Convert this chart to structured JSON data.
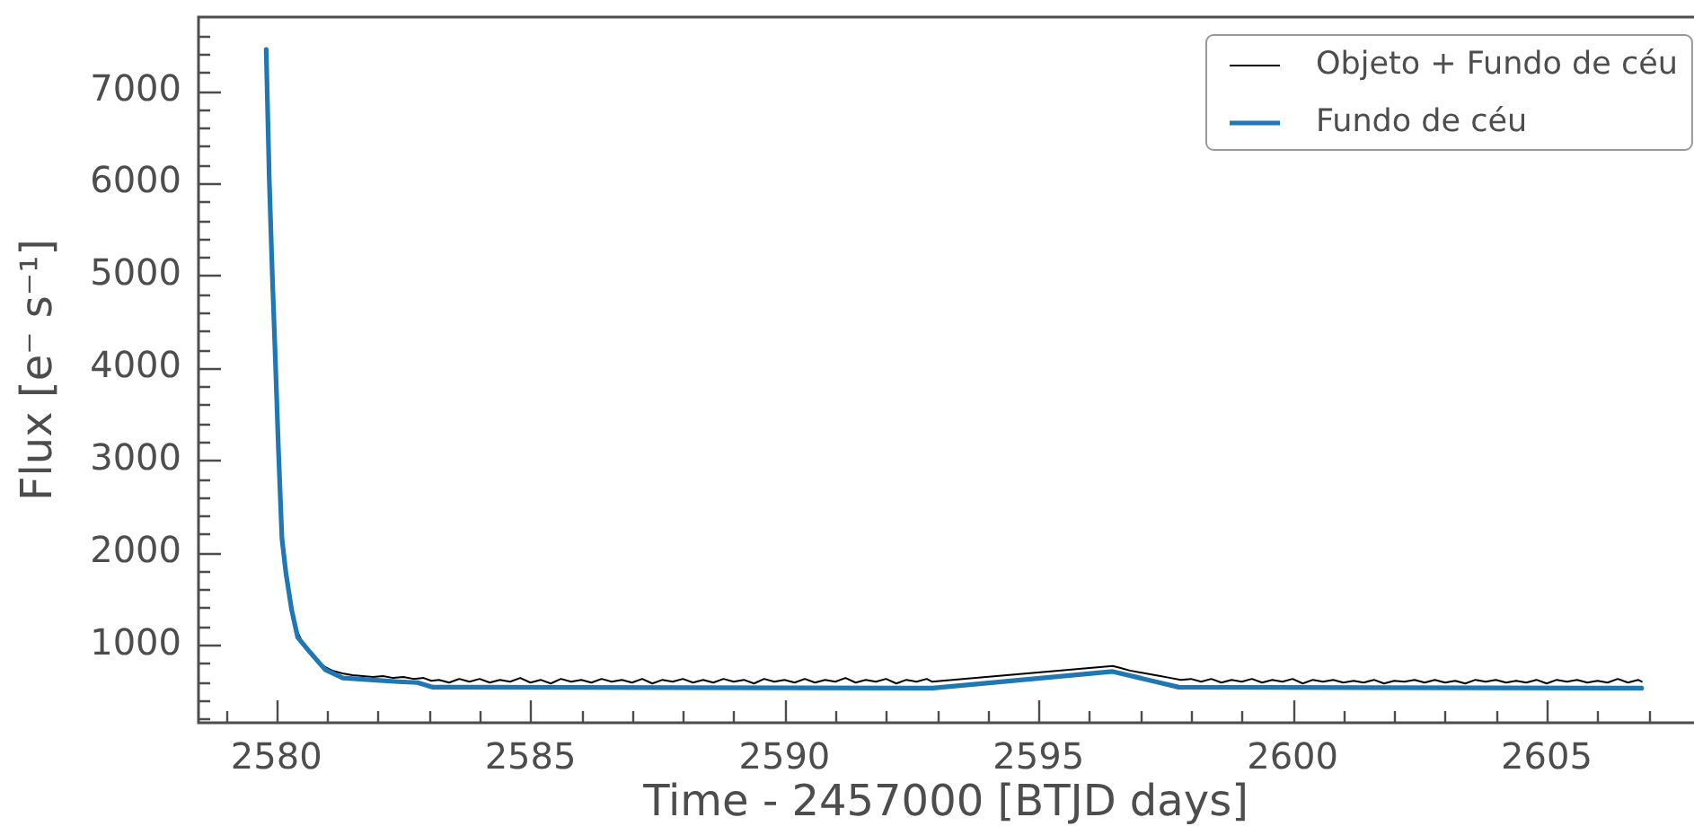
{
  "chart_data": {
    "type": "line",
    "xlabel": "Time - 2457000 [BTJD days]",
    "ylabel": "Flux [e⁻ s⁻¹]",
    "xlim": [
      2578.45,
      2607.9
    ],
    "ylim": [
      145,
      7810
    ],
    "xticks": [
      {
        "value": 2579,
        "label": null
      },
      2580,
      {
        "value": 2581,
        "label": null
      },
      {
        "value": 2582,
        "label": null
      },
      {
        "value": 2583,
        "label": null
      },
      {
        "value": 2584,
        "label": null
      },
      2585,
      {
        "value": 2586,
        "label": null
      },
      {
        "value": 2587,
        "label": null
      },
      {
        "value": 2588,
        "label": null
      },
      {
        "value": 2589,
        "label": null
      },
      2590,
      {
        "value": 2591,
        "label": null
      },
      {
        "value": 2592,
        "label": null
      },
      {
        "value": 2593,
        "label": null
      },
      {
        "value": 2594,
        "label": null
      },
      2595,
      {
        "value": 2596,
        "label": null
      },
      {
        "value": 2597,
        "label": null
      },
      {
        "value": 2598,
        "label": null
      },
      {
        "value": 2599,
        "label": null
      },
      2600,
      {
        "value": 2601,
        "label": null
      },
      {
        "value": 2602,
        "label": null
      },
      {
        "value": 2603,
        "label": null
      },
      {
        "value": 2604,
        "label": null
      },
      2605,
      {
        "value": 2606,
        "label": null
      },
      {
        "value": 2607,
        "label": null
      }
    ],
    "yticks": [
      {
        "value": 200,
        "label": null
      },
      {
        "value": 400,
        "label": null
      },
      {
        "value": 600,
        "label": null
      },
      {
        "value": 800,
        "label": null
      },
      1000,
      {
        "value": 1200,
        "label": null
      },
      {
        "value": 1400,
        "label": null
      },
      {
        "value": 1600,
        "label": null
      },
      {
        "value": 1800,
        "label": null
      },
      2000,
      {
        "value": 2200,
        "label": null
      },
      {
        "value": 2400,
        "label": null
      },
      {
        "value": 2600,
        "label": null
      },
      {
        "value": 2800,
        "label": null
      },
      3000,
      {
        "value": 3200,
        "label": null
      },
      {
        "value": 3400,
        "label": null
      },
      {
        "value": 3600,
        "label": null
      },
      {
        "value": 3800,
        "label": null
      },
      4000,
      {
        "value": 4200,
        "label": null
      },
      {
        "value": 4400,
        "label": null
      },
      {
        "value": 4600,
        "label": null
      },
      {
        "value": 4800,
        "label": null
      },
      5000,
      {
        "value": 5200,
        "label": null
      },
      {
        "value": 5400,
        "label": null
      },
      {
        "value": 5600,
        "label": null
      },
      {
        "value": 5800,
        "label": null
      },
      6000,
      {
        "value": 6200,
        "label": null
      },
      {
        "value": 6400,
        "label": null
      },
      {
        "value": 6600,
        "label": null
      },
      {
        "value": 6800,
        "label": null
      },
      7000,
      {
        "value": 7200,
        "label": null
      },
      {
        "value": 7400,
        "label": null
      },
      {
        "value": 7600,
        "label": null
      }
    ],
    "legend": "top right",
    "series": [
      {
        "name": "Objeto + Fundo de céu",
        "color": "#000000",
        "x": [
          2580.38,
          2580.5,
          2580.65,
          2580.8,
          2580.95,
          2581.1,
          2581.3,
          2581.5,
          2581.7,
          2581.9,
          2582.1,
          2582.3,
          2582.5,
          2582.7,
          2582.9,
          2583.05,
          2583.2,
          2583.4,
          2583.6,
          2583.8,
          2584.0,
          2584.2,
          2584.4,
          2584.6,
          2584.8,
          2585.0,
          2585.2,
          2585.4,
          2585.6,
          2585.8,
          2586.0,
          2586.2,
          2586.4,
          2586.6,
          2586.8,
          2587.0,
          2587.2,
          2587.4,
          2587.6,
          2587.8,
          2588.0,
          2588.2,
          2588.4,
          2588.6,
          2588.8,
          2589.0,
          2589.2,
          2589.4,
          2589.6,
          2589.8,
          2590.0,
          2590.2,
          2590.4,
          2590.6,
          2590.8,
          2591.0,
          2591.2,
          2591.4,
          2591.6,
          2591.8,
          2592.0,
          2592.2,
          2592.4,
          2592.6,
          2592.8,
          2592.9,
          2596.46,
          2596.6,
          2596.8,
          2597.0,
          2597.2,
          2597.4,
          2597.6,
          2597.8,
          2598.0,
          2598.2,
          2598.4,
          2598.6,
          2598.8,
          2599.0,
          2599.2,
          2599.4,
          2599.6,
          2599.8,
          2600.0,
          2600.2,
          2600.4,
          2600.6,
          2600.8,
          2601.0,
          2601.2,
          2601.4,
          2601.6,
          2601.8,
          2602.0,
          2602.2,
          2602.4,
          2602.6,
          2602.8,
          2603.0,
          2603.2,
          2603.4,
          2603.6,
          2603.8,
          2604.0,
          2604.2,
          2604.4,
          2604.6,
          2604.8,
          2605.0,
          2605.2,
          2605.4,
          2605.6,
          2605.8,
          2606.0,
          2606.2,
          2606.4,
          2606.6,
          2606.8,
          2606.87
        ],
        "values": [
          1180,
          1040,
          930,
          830,
          760,
          720,
          690,
          670,
          660,
          650,
          660,
          640,
          650,
          630,
          640,
          610,
          620,
          590,
          630,
          600,
          630,
          590,
          620,
          600,
          640,
          590,
          620,
          580,
          630,
          600,
          620,
          590,
          630,
          600,
          620,
          590,
          630,
          580,
          620,
          600,
          630,
          590,
          620,
          590,
          630,
          600,
          620,
          580,
          630,
          600,
          620,
          590,
          630,
          590,
          620,
          600,
          640,
          590,
          620,
          600,
          630,
          580,
          620,
          600,
          630,
          600,
          770,
          750,
          720,
          700,
          680,
          660,
          640,
          620,
          630,
          600,
          630,
          590,
          620,
          600,
          630,
          590,
          620,
          600,
          630,
          580,
          620,
          600,
          620,
          590,
          610,
          590,
          620,
          580,
          610,
          600,
          620,
          590,
          620,
          590,
          610,
          580,
          620,
          600,
          620,
          590,
          610,
          590,
          620,
          580,
          620,
          600,
          620,
          590,
          610,
          590,
          630,
          590,
          620,
          600
        ]
      },
      {
        "name": "Fundo de céu",
        "color": "#1f77b4",
        "x": [
          2579.8,
          2579.86,
          2579.92,
          2579.98,
          2580.04,
          2580.11,
          2580.19,
          2580.3,
          2580.42,
          2580.66,
          2580.96,
          2581.31,
          2581.84,
          2582.4,
          2582.78,
          2583.08,
          2592.92,
          2596.46,
          2597.76,
          2606.87
        ],
        "values": [
          7450,
          6050,
          5010,
          4100,
          3130,
          2150,
          1770,
          1380,
          1080,
          920,
          730,
          640,
          620,
          600,
          590,
          540,
          530,
          710,
          540,
          530
        ]
      }
    ]
  }
}
